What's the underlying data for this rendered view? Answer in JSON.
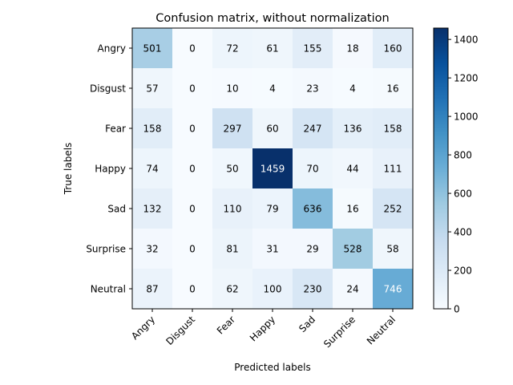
{
  "chart_data": {
    "type": "heatmap",
    "title": "Confusion matrix, without normalization",
    "xlabel": "Predicted labels",
    "ylabel": "True labels",
    "x_categories": [
      "Angry",
      "Disgust",
      "Fear",
      "Happy",
      "Sad",
      "Surprise",
      "Neutral"
    ],
    "y_categories": [
      "Angry",
      "Disgust",
      "Fear",
      "Happy",
      "Sad",
      "Surprise",
      "Neutral"
    ],
    "values": [
      [
        501,
        0,
        72,
        61,
        155,
        18,
        160
      ],
      [
        57,
        0,
        10,
        4,
        23,
        4,
        16
      ],
      [
        158,
        0,
        297,
        60,
        247,
        136,
        158
      ],
      [
        74,
        0,
        50,
        1459,
        70,
        44,
        111
      ],
      [
        132,
        0,
        110,
        79,
        636,
        16,
        252
      ],
      [
        32,
        0,
        81,
        31,
        29,
        528,
        58
      ],
      [
        87,
        0,
        62,
        100,
        230,
        24,
        746
      ]
    ],
    "colormap": "Blues",
    "colormap_stops": [
      "#f7fbff",
      "#deebf7",
      "#c6dbef",
      "#9ecae1",
      "#6baed6",
      "#4292c6",
      "#2171b5",
      "#08519c",
      "#08306b"
    ],
    "vmin": 0,
    "vmax": 1459,
    "colorbar_ticks": [
      0,
      200,
      400,
      600,
      800,
      1000,
      1200,
      1400
    ],
    "text_threshold": 729.5,
    "text_color_light": "#ffffff",
    "text_color_dark": "#000000"
  }
}
